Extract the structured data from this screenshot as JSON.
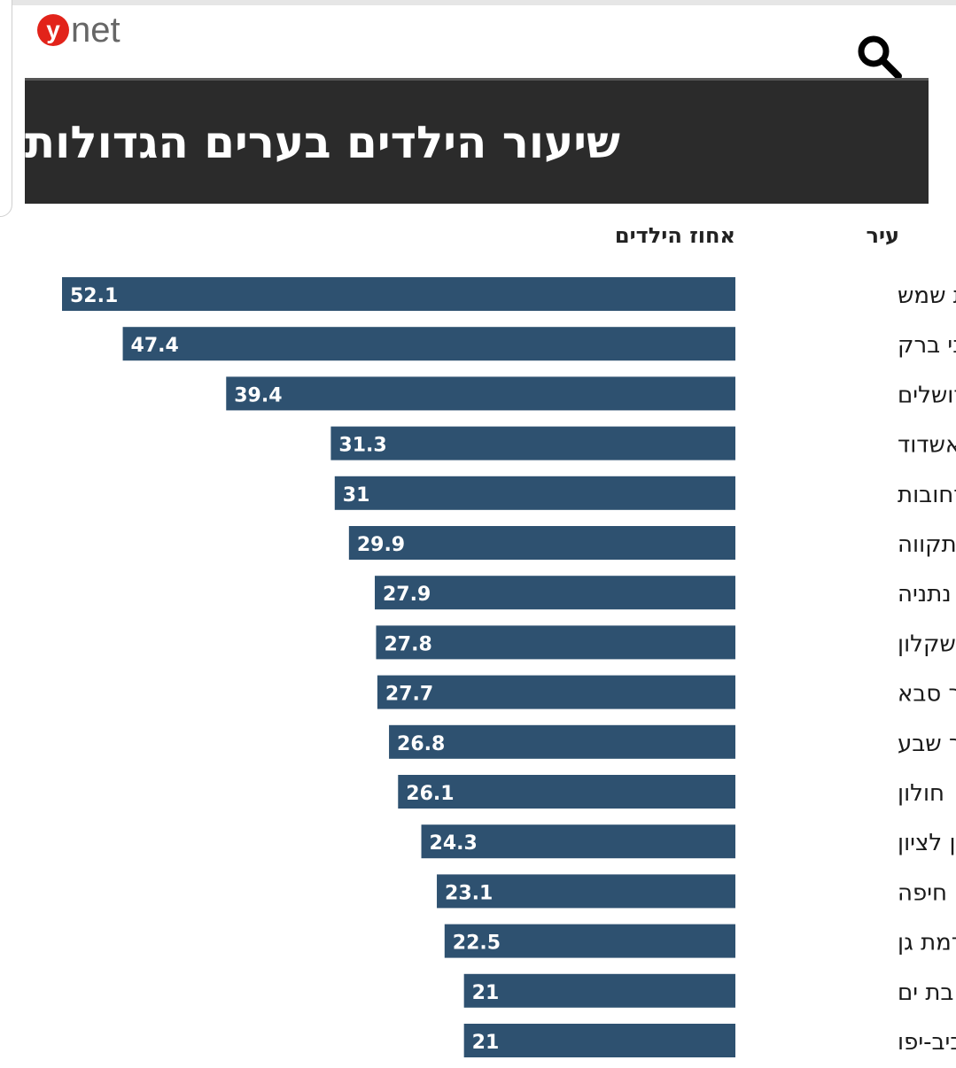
{
  "brand": {
    "logo_mark": "y",
    "logo_rest": "net"
  },
  "header": {
    "search_icon": "search-icon"
  },
  "colors": {
    "bar": "#2e5170",
    "title_bg": "#2b2b2b",
    "logo_red": "#e2231a"
  },
  "chart_data": {
    "type": "bar",
    "orientation": "horizontal",
    "title": "שיעור הילדים בערים הגדולות",
    "column_headers": {
      "category": "עיר",
      "value": "אחוז הילדים"
    },
    "categories": [
      "בית שמש",
      "בני ברק",
      "ירושלים",
      "אשדוד",
      "רחובות",
      "פתח תקווה",
      "נתניה",
      "אשקלון",
      "כפר סבא",
      "באר שבע",
      "חולון",
      "ראשון לציון",
      "חיפה",
      "רמת גן",
      "בת ים",
      "תל אביב-יפו"
    ],
    "values": [
      52.1,
      47.4,
      39.4,
      31.3,
      31,
      29.9,
      27.9,
      27.8,
      27.7,
      26.8,
      26.1,
      24.3,
      23.1,
      22.5,
      21,
      21
    ],
    "value_labels": [
      "52.1",
      "47.4",
      "39.4",
      "31.3",
      "31",
      "29.9",
      "27.9",
      "27.8",
      "27.7",
      "26.8",
      "26.1",
      "24.3",
      "23.1",
      "22.5",
      "21",
      "21"
    ],
    "xlim": [
      0,
      52.1
    ],
    "grid": false,
    "legend": "none"
  }
}
